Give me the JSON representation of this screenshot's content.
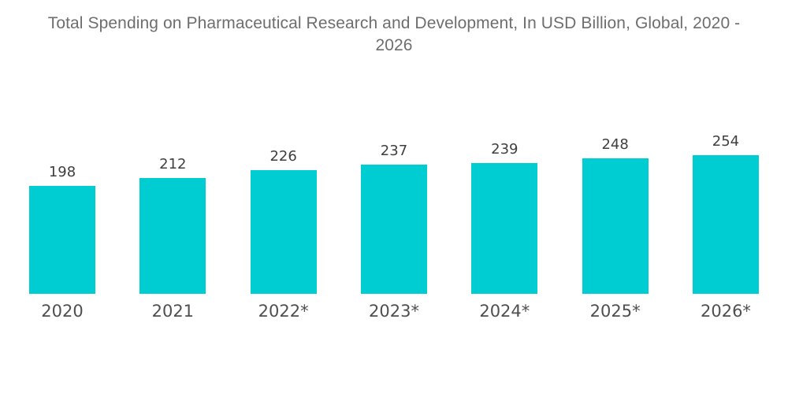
{
  "header": {
    "title_line1": "Total Spending on Pharmaceutical Research and Development, In USD Billion, Global, 2020 -",
    "title_line2": "2026"
  },
  "chart_data": {
    "type": "bar",
    "title": "Total Spending on Pharmaceutical Research and Development, In USD Billion, Global, 2020 - 2026",
    "categories": [
      "2020",
      "2021",
      "2022*",
      "2023*",
      "2024*",
      "2025*",
      "2026*"
    ],
    "values": [
      198,
      212,
      226,
      237,
      239,
      248,
      254
    ],
    "xlabel": "",
    "ylabel": "",
    "ylim": [
      0,
      260
    ],
    "grid": false,
    "legend": false,
    "axes_visible": false,
    "value_labels": true,
    "bar_color": "#00CDD2",
    "value_label_color": "#3f3f3f",
    "tick_label_color": "#4f4f4f",
    "title_color": "#6e6e6e",
    "background_color": "#ffffff"
  }
}
